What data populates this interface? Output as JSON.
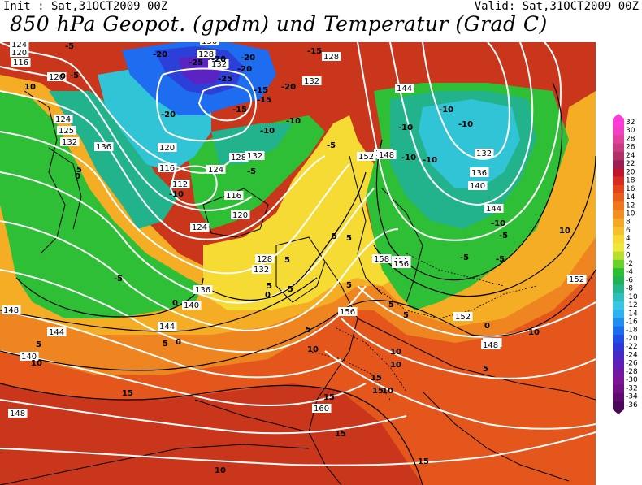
{
  "header": {
    "init": "Init : Sat,31OCT2009 00Z",
    "valid": "Valid: Sat,31OCT2009 00Z",
    "title": "850 hPa Geopot. (gpdm) und Temperatur (Grad C)"
  },
  "legend": {
    "levels": [
      "32",
      "30",
      "28",
      "26",
      "24",
      "22",
      "20",
      "18",
      "16",
      "14",
      "12",
      "10",
      "8",
      "6",
      "4",
      "2",
      "0",
      "-2",
      "-4",
      "-6",
      "-8",
      "-10",
      "-12",
      "-14",
      "-16",
      "-18",
      "-20",
      "-22",
      "-24",
      "-26",
      "-28",
      "-30",
      "-32",
      "-34",
      "-36"
    ],
    "colors": [
      "#ff3ad7",
      "#f23fc4",
      "#e0419f",
      "#c93a82",
      "#b2306a",
      "#991f55",
      "#c0152a",
      "#d82a1e",
      "#e4431c",
      "#ea5c1b",
      "#ef761d",
      "#f28f1f",
      "#f4a823",
      "#f5c12a",
      "#f6d933",
      "#eee83a",
      "#b8df2b",
      "#6ad02a",
      "#2cbf33",
      "#1fb256",
      "#25b58f",
      "#2dbfbd",
      "#36c7e5",
      "#2cb2ee",
      "#208ef0",
      "#1a6df0",
      "#1f4ee6",
      "#3136d6",
      "#4a28c8",
      "#5e1fb8",
      "#7018a6",
      "#7b1496",
      "#711083",
      "#5e0b6d",
      "#4c0858"
    ]
  },
  "map": {
    "colors": {
      "red": "#c9361c",
      "dark_orange": "#e5561c",
      "orange": "#ef8520",
      "light_orange": "#f4ad24",
      "yellow": "#f5db34",
      "lime": "#b8df2b",
      "green": "#2fbf37",
      "teal": "#23b38c",
      "cyan": "#31c3d6",
      "blue": "#1e6cf0",
      "navy": "#2c3fd8",
      "purple": "#5a23c2"
    },
    "geopotential_labels": [
      "124",
      "120",
      "116",
      "120",
      "124",
      "125",
      "132",
      "136",
      "120",
      "116",
      "112",
      "128",
      "124",
      "132",
      "116",
      "120",
      "124",
      "128",
      "132",
      "136",
      "140",
      "144",
      "140",
      "144",
      "148",
      "148",
      "156",
      "156",
      "158",
      "156",
      "152",
      "148",
      "148",
      "152",
      "160",
      "136",
      "128",
      "132",
      "132",
      "136",
      "140",
      "144",
      "148",
      "152",
      "128",
      "129",
      "124",
      "132",
      "136",
      "144",
      "148"
    ],
    "temperature_labels": [
      "-5",
      "10",
      "-5",
      "5",
      "0",
      "0",
      "-20",
      "-20",
      "-25",
      "-20",
      "-25",
      "-20",
      "-15",
      "-15",
      "-15",
      "-20",
      "-20",
      "-15",
      "-10",
      "-10",
      "-10",
      "-5",
      "-10",
      "-10",
      "-10",
      "-10",
      "-10",
      "-5",
      "-10",
      "-5",
      "-5",
      "-5",
      "0",
      "5",
      "-5",
      "0",
      "5",
      "5",
      "5",
      "5",
      "10",
      "10",
      "15",
      "15",
      "15",
      "15",
      "10",
      "15",
      "10",
      "15",
      "5",
      "5",
      "5",
      "10",
      "10",
      "10",
      "5",
      "0",
      "5",
      "10",
      "5",
      "0",
      "5"
    ]
  }
}
